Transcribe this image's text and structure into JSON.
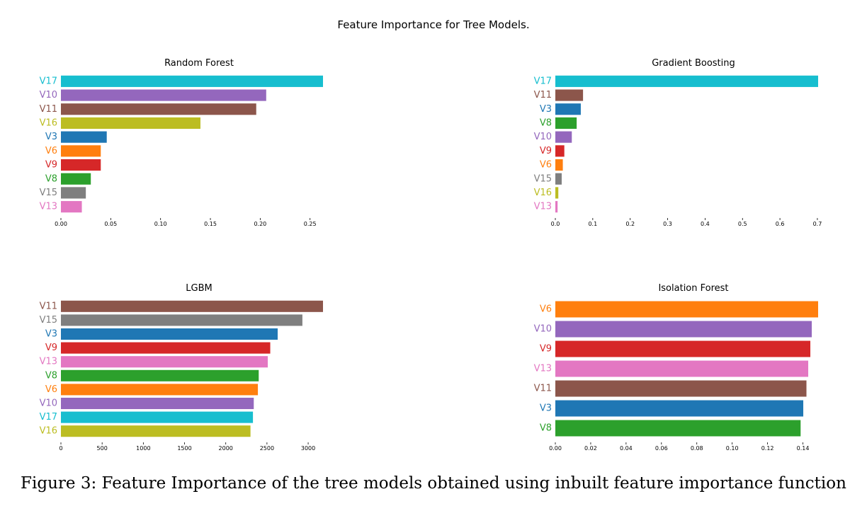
{
  "figure": {
    "suptitle": "Feature Importance for Tree Models.",
    "caption": "Figure 3: Feature Importance of the tree models obtained using inbuilt feature importance function"
  },
  "colors": {
    "V3": "#1f77b4",
    "V6": "#ff7f0e",
    "V8": "#2ca02c",
    "V9": "#d62728",
    "V10": "#9467bd",
    "V11": "#8c564b",
    "V13": "#e377c2",
    "V15": "#7f7f7f",
    "V16": "#bcbd22",
    "V17": "#17becf"
  },
  "chart_data": [
    {
      "type": "bar",
      "orientation": "horizontal",
      "title": "Random Forest",
      "categories": [
        "V17",
        "V10",
        "V11",
        "V16",
        "V3",
        "V6",
        "V9",
        "V8",
        "V15",
        "V13"
      ],
      "values": [
        0.263,
        0.206,
        0.196,
        0.14,
        0.046,
        0.04,
        0.04,
        0.03,
        0.025,
        0.021
      ],
      "xticks": [
        0,
        0.05,
        0.1,
        0.15,
        0.2,
        0.25
      ],
      "xtick_labels": [
        "0.00",
        "0.05",
        "0.10",
        "0.15",
        "0.20",
        "0.25"
      ],
      "xlim": [
        0,
        0.263
      ]
    },
    {
      "type": "bar",
      "orientation": "horizontal",
      "title": "Gradient Boosting",
      "categories": [
        "V17",
        "V11",
        "V3",
        "V8",
        "V10",
        "V9",
        "V6",
        "V15",
        "V16",
        "V13"
      ],
      "values": [
        0.702,
        0.074,
        0.068,
        0.057,
        0.044,
        0.024,
        0.02,
        0.017,
        0.008,
        0.006
      ],
      "xticks": [
        0,
        0.1,
        0.2,
        0.3,
        0.4,
        0.5,
        0.6,
        0.7
      ],
      "xtick_labels": [
        "0.0",
        "0.1",
        "0.2",
        "0.3",
        "0.4",
        "0.5",
        "0.6",
        "0.7"
      ],
      "xlim": [
        0,
        0.702
      ]
    },
    {
      "type": "bar",
      "orientation": "horizontal",
      "title": "LGBM",
      "categories": [
        "V11",
        "V15",
        "V3",
        "V9",
        "V13",
        "V8",
        "V6",
        "V10",
        "V17",
        "V16"
      ],
      "values": [
        3180,
        2930,
        2630,
        2540,
        2510,
        2400,
        2390,
        2340,
        2330,
        2300
      ],
      "xticks": [
        0,
        500,
        1000,
        1500,
        2000,
        2500,
        3000
      ],
      "xtick_labels": [
        "0",
        "500",
        "1000",
        "1500",
        "2000",
        "2500",
        "3000"
      ],
      "xlim": [
        0,
        3180
      ]
    },
    {
      "type": "bar",
      "orientation": "horizontal",
      "title": "Isolation Forest",
      "categories": [
        "V6",
        "V10",
        "V9",
        "V13",
        "V11",
        "V3",
        "V8"
      ],
      "values": [
        0.1486,
        0.145,
        0.1442,
        0.143,
        0.142,
        0.1402,
        0.1387
      ],
      "xticks": [
        0,
        0.02,
        0.04,
        0.06,
        0.08,
        0.1,
        0.12,
        0.14
      ],
      "xtick_labels": [
        "0.00",
        "0.02",
        "0.04",
        "0.06",
        "0.08",
        "0.10",
        "0.12",
        "0.14"
      ],
      "xlim": [
        0,
        0.1486
      ]
    }
  ]
}
